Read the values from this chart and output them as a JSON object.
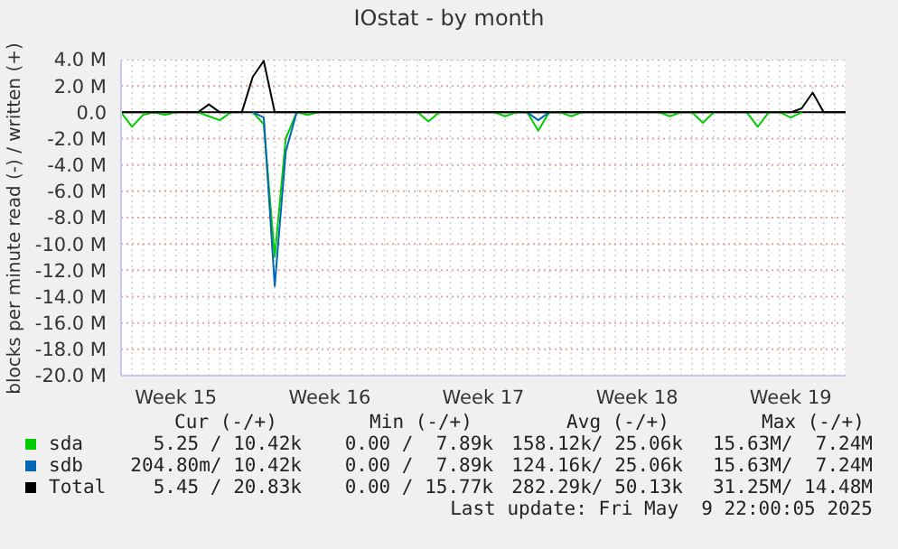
{
  "chart_data": {
    "type": "line",
    "title": "IOstat - by month",
    "ylabel": "blocks per minute read (-) / written (+)",
    "categories": [
      null,
      null,
      null,
      null,
      null,
      "Week 15",
      null,
      null,
      null,
      null,
      null,
      null,
      null,
      null,
      null,
      null,
      null,
      null,
      null,
      "Week 16",
      null,
      null,
      null,
      null,
      null,
      null,
      null,
      null,
      null,
      null,
      null,
      null,
      null,
      "Week 17",
      null,
      null,
      null,
      null,
      null,
      null,
      null,
      null,
      null,
      null,
      null,
      null,
      null,
      "Week 18",
      null,
      null,
      null,
      null,
      null,
      null,
      null,
      null,
      null,
      null,
      null,
      null,
      null,
      "Week 19",
      null,
      null,
      null,
      null,
      null
    ],
    "ylim": [
      -20,
      4
    ],
    "yticks": [
      {
        "value": -20,
        "label": "-20.0 M"
      },
      {
        "value": -18,
        "label": "-18.0 M"
      },
      {
        "value": -16,
        "label": "-16.0 M"
      },
      {
        "value": -14,
        "label": "-14.0 M"
      },
      {
        "value": -12,
        "label": "-12.0 M"
      },
      {
        "value": -10,
        "label": "-10.0 M"
      },
      {
        "value": -8,
        "label": "-8.0 M"
      },
      {
        "value": -6,
        "label": "-6.0 M"
      },
      {
        "value": -4,
        "label": "-4.0 M"
      },
      {
        "value": -2,
        "label": "-2.0 M"
      },
      {
        "value": 0,
        "label": "0.0"
      },
      {
        "value": 2,
        "label": "2.0 M"
      },
      {
        "value": 4,
        "label": "4.0 M"
      }
    ],
    "grid": true,
    "legend": "bottom",
    "series": [
      {
        "name": "sda",
        "color": "#00cc00",
        "values": [
          0,
          -1.1,
          -0.2,
          0,
          -0.2,
          0,
          null,
          0,
          -0.3,
          -0.6,
          0,
          null,
          0,
          -0.9,
          -11,
          -2,
          0,
          -0.2,
          0,
          null,
          null,
          null,
          null,
          null,
          null,
          null,
          null,
          0,
          -0.7,
          0,
          null,
          null,
          null,
          null,
          0,
          -0.3,
          0,
          0,
          -1.4,
          0,
          0,
          -0.3,
          0,
          null,
          null,
          null,
          null,
          null,
          null,
          0,
          -0.3,
          0,
          0,
          -0.8,
          0,
          null,
          null,
          0,
          -1.1,
          0,
          0,
          -0.4,
          0,
          null,
          null,
          null,
          null
        ]
      },
      {
        "name": "sdb",
        "color": "#0066b3",
        "values": [
          null,
          null,
          null,
          null,
          null,
          null,
          null,
          null,
          null,
          null,
          null,
          null,
          0,
          -0.4,
          -13.2,
          -3,
          0,
          null,
          null,
          null,
          null,
          null,
          null,
          null,
          null,
          null,
          null,
          null,
          null,
          null,
          null,
          null,
          null,
          null,
          null,
          null,
          null,
          0,
          -0.6,
          0,
          null,
          null,
          null,
          null,
          null,
          null,
          null,
          null,
          null,
          null,
          null,
          null,
          null,
          null,
          null,
          null,
          null,
          null,
          null,
          null,
          null,
          null,
          null,
          null,
          null,
          null,
          null
        ]
      },
      {
        "name": "Total",
        "color": "#000000",
        "values": [
          0,
          0,
          0,
          0,
          0,
          0,
          0,
          0,
          0.6,
          0,
          0,
          0,
          2.7,
          3.9,
          0,
          0,
          0,
          0,
          0,
          0,
          0,
          0,
          0,
          0,
          0,
          0,
          0,
          0,
          0,
          0,
          0,
          0,
          0,
          0,
          0,
          0,
          0,
          0,
          0,
          0,
          0,
          0,
          0,
          0,
          0,
          0,
          0,
          0,
          0,
          0,
          0,
          0,
          0,
          0,
          0,
          0,
          0,
          0,
          0,
          0,
          0,
          0,
          0.3,
          1.5,
          0,
          0,
          0
        ]
      }
    ],
    "annotations": [
      "Cur (-/+)",
      "Min (-/+)",
      "Avg (-/+)",
      "Max (-/+)",
      "5.25 / 10.42k",
      "0.00 /  7.89k",
      "158.12k/ 25.06k",
      "15.63M/  7.24M",
      "204.80m/ 10.42k",
      "0.00 /  7.89k",
      "124.16k/ 25.06k",
      "15.63M/  7.24M",
      "5.45 / 20.83k",
      "0.00 / 15.77k",
      "282.29k/ 50.13k",
      "31.25M/ 14.48M",
      "Last update: Fri May  9 22:00:05 2025"
    ]
  }
}
